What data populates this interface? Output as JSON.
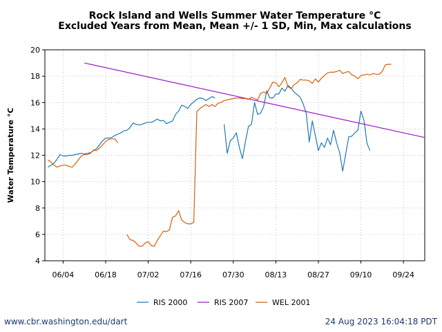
{
  "footer": {
    "source": "www.cbr.washington.edu/dart",
    "timestamp": "24 Aug 2023 16:04:18 PDT"
  },
  "chart_data": {
    "type": "line",
    "title": "Rock Island and Wells Summer Water Temperature °C",
    "subtitle": "Excluded Years from Mean, Mean +/- 1 SD, Min, Max calculations",
    "xlabel": "",
    "ylabel": "Water Temperature °C",
    "xlim": [
      "05/29",
      "10/01"
    ],
    "ylim": [
      4,
      20
    ],
    "x_ticks": [
      "06/04",
      "06/18",
      "07/02",
      "07/16",
      "07/30",
      "08/13",
      "08/27",
      "09/10",
      "09/24"
    ],
    "y_ticks": [
      4,
      6,
      8,
      10,
      12,
      14,
      16,
      18,
      20
    ],
    "grid": true,
    "legend_position": "bottom",
    "series": [
      {
        "name": "RIS 2000",
        "color": "#1f77b4",
        "points": [
          [
            "05/30",
            11.1
          ],
          [
            "05/31",
            11.25
          ],
          [
            "06/01",
            11.4
          ],
          [
            "06/02",
            11.7
          ],
          [
            "06/03",
            12.05
          ],
          [
            "06/04",
            11.95
          ],
          [
            "06/05",
            11.95
          ],
          [
            "06/06",
            12.0
          ],
          [
            "06/07",
            12.0
          ],
          [
            "06/08",
            12.05
          ],
          [
            "06/09",
            12.1
          ],
          [
            "06/10",
            12.15
          ],
          [
            "06/11",
            12.1
          ],
          [
            "06/12",
            12.15
          ],
          [
            "06/13",
            12.2
          ],
          [
            "06/14",
            12.35
          ],
          [
            "06/15",
            12.5
          ],
          [
            "06/16",
            12.8
          ],
          [
            "06/17",
            13.1
          ],
          [
            "06/18",
            13.3
          ],
          [
            "06/19",
            13.3
          ],
          [
            "06/20",
            13.35
          ],
          [
            "06/21",
            13.5
          ],
          [
            "06/22",
            13.6
          ],
          [
            "06/23",
            13.7
          ],
          [
            "06/24",
            13.85
          ],
          [
            "06/25",
            13.9
          ],
          [
            "06/26",
            14.1
          ],
          [
            "06/27",
            14.45
          ],
          [
            "06/28",
            14.35
          ],
          [
            "06/29",
            14.3
          ],
          [
            "06/30",
            14.35
          ],
          [
            "07/01",
            14.45
          ],
          [
            "07/02",
            14.5
          ],
          [
            "07/03",
            14.5
          ],
          [
            "07/04",
            14.6
          ],
          [
            "07/05",
            14.75
          ],
          [
            "07/06",
            14.6
          ],
          [
            "07/07",
            14.65
          ],
          [
            "07/08",
            14.4
          ],
          [
            "07/09",
            14.5
          ],
          [
            "07/10",
            14.6
          ],
          [
            "07/11",
            15.1
          ],
          [
            "07/12",
            15.35
          ],
          [
            "07/13",
            15.8
          ],
          [
            "07/14",
            15.7
          ],
          [
            "07/15",
            15.55
          ],
          [
            "07/16",
            15.85
          ],
          [
            "07/17",
            16.05
          ],
          [
            "07/18",
            16.25
          ],
          [
            "07/19",
            16.35
          ],
          [
            "07/20",
            16.3
          ],
          [
            "07/21",
            16.15
          ],
          [
            "07/22",
            16.3
          ],
          [
            "07/23",
            16.45
          ],
          [
            "07/24",
            16.35
          ],
          null,
          [
            "07/27",
            14.35
          ],
          [
            "07/28",
            12.15
          ],
          [
            "07/29",
            13.1
          ],
          [
            "07/30",
            13.3
          ],
          [
            "07/31",
            13.7
          ],
          [
            "08/01",
            12.6
          ],
          [
            "08/02",
            11.75
          ],
          [
            "08/03",
            13.05
          ],
          [
            "08/04",
            14.2
          ],
          [
            "08/05",
            14.35
          ],
          [
            "08/06",
            16.0
          ],
          [
            "08/07",
            15.1
          ],
          [
            "08/08",
            15.2
          ],
          [
            "08/09",
            15.7
          ],
          [
            "08/10",
            16.9
          ],
          [
            "08/11",
            16.35
          ],
          [
            "08/12",
            16.35
          ],
          [
            "08/13",
            16.65
          ],
          [
            "08/14",
            16.65
          ],
          [
            "08/15",
            17.1
          ],
          [
            "08/16",
            16.85
          ],
          [
            "08/17",
            17.3
          ],
          [
            "08/18",
            17.1
          ],
          [
            "08/19",
            16.8
          ],
          [
            "08/20",
            16.6
          ],
          [
            "08/21",
            16.4
          ],
          [
            "08/22",
            15.9
          ],
          [
            "08/23",
            15.2
          ],
          [
            "08/24",
            13.0
          ],
          [
            "08/25",
            14.6
          ],
          [
            "08/26",
            13.5
          ],
          [
            "08/27",
            12.35
          ],
          [
            "08/28",
            12.95
          ],
          [
            "08/29",
            12.6
          ],
          [
            "08/30",
            13.3
          ],
          [
            "08/31",
            12.8
          ],
          [
            "09/01",
            13.9
          ],
          [
            "09/02",
            12.95
          ],
          [
            "09/03",
            12.2
          ],
          [
            "09/04",
            10.8
          ],
          [
            "09/05",
            12.1
          ],
          [
            "09/06",
            13.4
          ],
          [
            "09/07",
            13.45
          ],
          [
            "09/08",
            13.7
          ],
          [
            "09/09",
            13.9
          ],
          [
            "09/10",
            15.35
          ],
          [
            "09/11",
            14.65
          ],
          [
            "09/12",
            12.9
          ],
          [
            "09/13",
            12.35
          ]
        ]
      },
      {
        "name": "RIS 2007",
        "color": "#9b19cc",
        "points": [
          [
            "06/11",
            19.0
          ],
          [
            "10/01",
            13.35
          ]
        ]
      },
      {
        "name": "WEL 2001",
        "color": "#d45f0b",
        "points": [
          [
            "05/30",
            11.65
          ],
          [
            "05/31",
            11.5
          ],
          [
            "06/01",
            11.25
          ],
          [
            "06/02",
            11.1
          ],
          [
            "06/03",
            11.2
          ],
          [
            "06/04",
            11.25
          ],
          [
            "06/05",
            11.25
          ],
          [
            "06/06",
            11.15
          ],
          [
            "06/07",
            11.1
          ],
          [
            "06/08",
            11.35
          ],
          [
            "06/09",
            11.65
          ],
          [
            "06/10",
            11.95
          ],
          [
            "06/11",
            12.05
          ],
          [
            "06/12",
            12.05
          ],
          [
            "06/13",
            12.15
          ],
          [
            "06/14",
            12.4
          ],
          [
            "06/15",
            12.35
          ],
          [
            "06/16",
            12.55
          ],
          [
            "06/17",
            12.8
          ],
          [
            "06/18",
            13.05
          ],
          [
            "06/19",
            13.2
          ],
          [
            "06/20",
            13.25
          ],
          [
            "06/21",
            13.25
          ],
          [
            "06/22",
            12.95
          ],
          null,
          [
            "06/25",
            6.0
          ],
          [
            "06/26",
            5.6
          ],
          [
            "06/27",
            5.55
          ],
          [
            "06/28",
            5.35
          ],
          [
            "06/29",
            5.1
          ],
          [
            "06/30",
            5.1
          ],
          [
            "07/01",
            5.35
          ],
          [
            "07/02",
            5.45
          ],
          [
            "07/03",
            5.15
          ],
          [
            "07/04",
            5.1
          ],
          [
            "07/05",
            5.55
          ],
          [
            "07/06",
            5.9
          ],
          [
            "07/07",
            6.25
          ],
          [
            "07/08",
            6.2
          ],
          [
            "07/09",
            6.35
          ],
          [
            "07/10",
            7.3
          ],
          [
            "07/11",
            7.4
          ],
          [
            "07/12",
            7.8
          ],
          [
            "07/13",
            7.1
          ],
          [
            "07/14",
            6.9
          ],
          [
            "07/15",
            6.8
          ],
          [
            "07/16",
            6.8
          ],
          [
            "07/17",
            6.9
          ],
          [
            "07/18",
            15.3
          ],
          [
            "07/19",
            15.55
          ],
          [
            "07/20",
            15.7
          ],
          [
            "07/21",
            15.85
          ],
          [
            "07/22",
            15.7
          ],
          [
            "07/23",
            15.85
          ],
          [
            "07/24",
            15.7
          ],
          [
            "07/25",
            15.95
          ],
          [
            "07/26",
            16.0
          ],
          [
            "07/27",
            16.15
          ],
          [
            "07/28",
            16.2
          ],
          [
            "07/29",
            16.25
          ],
          [
            "07/30",
            16.3
          ],
          [
            "07/31",
            16.35
          ],
          [
            "08/01",
            16.35
          ],
          [
            "08/02",
            16.3
          ],
          [
            "08/03",
            16.3
          ],
          [
            "08/04",
            16.25
          ],
          [
            "08/05",
            16.4
          ],
          [
            "08/06",
            16.3
          ],
          [
            "08/07",
            16.2
          ],
          [
            "08/08",
            16.7
          ],
          [
            "08/09",
            16.8
          ],
          [
            "08/10",
            16.7
          ],
          [
            "08/11",
            17.1
          ],
          [
            "08/12",
            17.55
          ],
          [
            "08/13",
            17.5
          ],
          [
            "08/14",
            17.2
          ],
          [
            "08/15",
            17.5
          ],
          [
            "08/16",
            17.9
          ],
          [
            "08/17",
            17.2
          ],
          [
            "08/18",
            17.05
          ],
          [
            "08/19",
            17.35
          ],
          [
            "08/20",
            17.5
          ],
          [
            "08/21",
            17.75
          ],
          [
            "08/22",
            17.7
          ],
          [
            "08/23",
            17.7
          ],
          [
            "08/24",
            17.65
          ],
          [
            "08/25",
            17.45
          ],
          [
            "08/26",
            17.8
          ],
          [
            "08/27",
            17.55
          ],
          [
            "08/28",
            17.85
          ],
          [
            "08/29",
            18.05
          ],
          [
            "08/30",
            18.25
          ],
          [
            "08/31",
            18.3
          ],
          [
            "09/01",
            18.3
          ],
          [
            "09/02",
            18.35
          ],
          [
            "09/03",
            18.45
          ],
          [
            "09/04",
            18.2
          ],
          [
            "09/05",
            18.3
          ],
          [
            "09/06",
            18.35
          ],
          [
            "09/07",
            18.1
          ],
          [
            "09/08",
            18.0
          ],
          [
            "09/09",
            17.8
          ],
          [
            "09/10",
            18.05
          ],
          [
            "09/11",
            18.1
          ],
          [
            "09/12",
            18.15
          ],
          [
            "09/13",
            18.1
          ],
          [
            "09/14",
            18.2
          ],
          [
            "09/15",
            18.15
          ],
          [
            "09/16",
            18.15
          ],
          [
            "09/17",
            18.35
          ],
          [
            "09/18",
            18.85
          ],
          [
            "09/19",
            18.9
          ],
          [
            "09/20",
            18.9
          ]
        ]
      }
    ]
  }
}
